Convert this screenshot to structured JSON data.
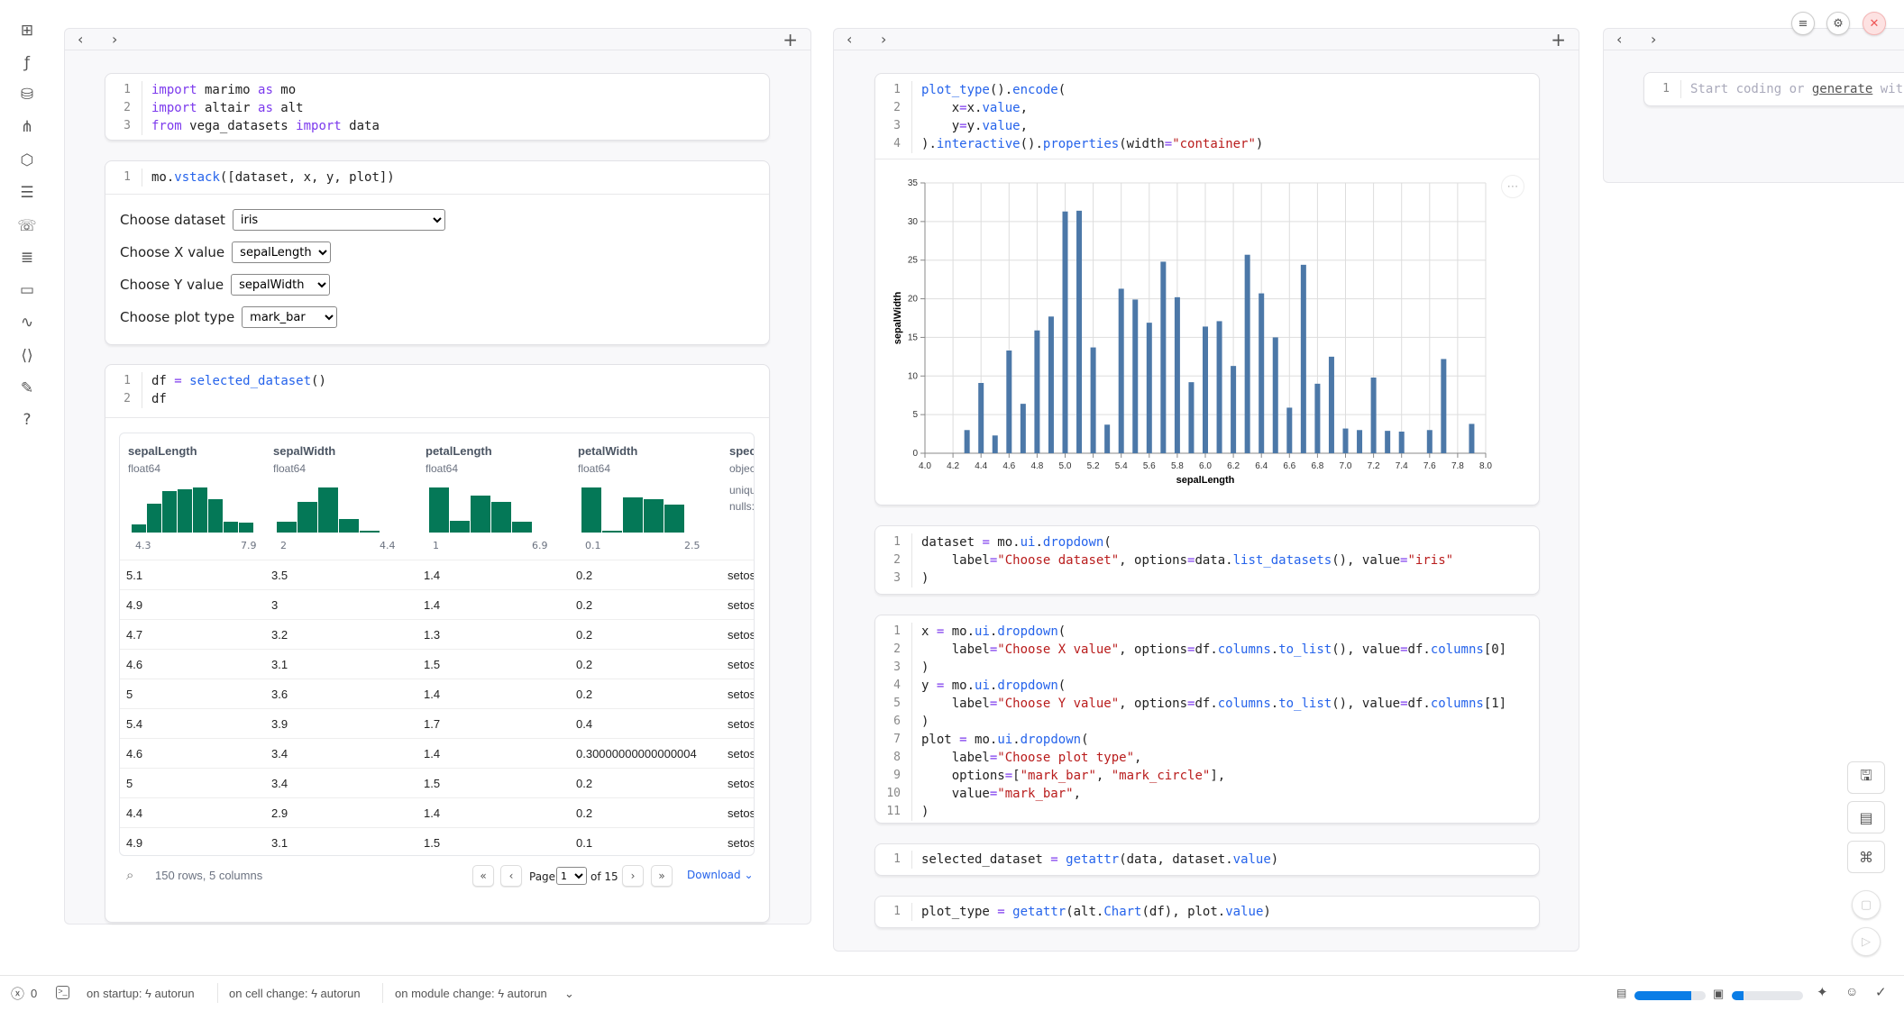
{
  "sidebar": {
    "icons": [
      "file-tree-icon",
      "function-icon",
      "database-icon",
      "dependency-graph-icon",
      "package-icon",
      "outline-icon",
      "chat-icon",
      "search-list-icon",
      "document-icon",
      "activity-icon",
      "snippets-icon",
      "notes-icon",
      "help-icon"
    ]
  },
  "panel1": {
    "cell1": [
      "import marimo as mo",
      "import altair as alt",
      "from vega_datasets import data"
    ],
    "cell2": [
      "mo.vstack([dataset, x, y, plot])"
    ],
    "form": [
      {
        "label": "Choose dataset",
        "value": "iris"
      },
      {
        "label": "Choose X value",
        "value": "sepalLength"
      },
      {
        "label": "Choose Y value",
        "value": "sepalWidth"
      },
      {
        "label": "Choose plot type",
        "value": "mark_bar"
      }
    ],
    "cell3": [
      "df = selected_dataset()",
      "df"
    ],
    "table": {
      "columns": [
        {
          "name": "sepalLength",
          "type": "float64",
          "min": "4.3",
          "max": "7.9",
          "hist": [
            9,
            32,
            46,
            48,
            50,
            37,
            12,
            11
          ]
        },
        {
          "name": "sepalWidth",
          "type": "float64",
          "min": "2",
          "max": "4.4",
          "hist": [
            15,
            44,
            64,
            19,
            3
          ]
        },
        {
          "name": "petalLength",
          "type": "float64",
          "min": "1",
          "max": "6.9",
          "hist": [
            50,
            13,
            41,
            34,
            12
          ]
        },
        {
          "name": "petalWidth",
          "type": "float64",
          "min": "0.1",
          "max": "2.5",
          "hist": [
            49,
            2,
            38,
            36,
            30
          ]
        },
        {
          "name": "species",
          "type": "object",
          "unique": "uniqu",
          "nulls": "nulls:"
        }
      ],
      "rows": [
        [
          "5.1",
          "3.5",
          "1.4",
          "0.2",
          "setosa"
        ],
        [
          "4.9",
          "3",
          "1.4",
          "0.2",
          "setosa"
        ],
        [
          "4.7",
          "3.2",
          "1.3",
          "0.2",
          "setosa"
        ],
        [
          "4.6",
          "3.1",
          "1.5",
          "0.2",
          "setosa"
        ],
        [
          "5",
          "3.6",
          "1.4",
          "0.2",
          "setosa"
        ],
        [
          "5.4",
          "3.9",
          "1.7",
          "0.4",
          "setosa"
        ],
        [
          "4.6",
          "3.4",
          "1.4",
          "0.30000000000000004",
          "setosa"
        ],
        [
          "5",
          "3.4",
          "1.5",
          "0.2",
          "setosa"
        ],
        [
          "4.4",
          "2.9",
          "1.4",
          "0.2",
          "setosa"
        ],
        [
          "4.9",
          "3.1",
          "1.5",
          "0.1",
          "setosa"
        ]
      ],
      "summary": "150 rows, 5 columns",
      "page_label": "Page",
      "page": "1",
      "of_label": "of 15",
      "download": "Download"
    }
  },
  "panel2": {
    "cellA": [
      "plot_type().encode(",
      "    x=x.value,",
      "    y=y.value,",
      ").interactive().properties(width=\"container\")"
    ],
    "cellB": [
      "dataset = mo.ui.dropdown(",
      "    label=\"Choose dataset\", options=data.list_datasets(), value=\"iris\"",
      ")"
    ],
    "cellC": [
      "x = mo.ui.dropdown(",
      "    label=\"Choose X value\", options=df.columns.to_list(), value=df.columns[0]",
      ")",
      "y = mo.ui.dropdown(",
      "    label=\"Choose Y value\", options=df.columns.to_list(), value=df.columns[1]",
      ")",
      "plot = mo.ui.dropdown(",
      "    label=\"Choose plot type\",",
      "    options=[\"mark_bar\", \"mark_circle\"],",
      "    value=\"mark_bar\",",
      ")"
    ],
    "cellD": [
      "selected_dataset = getattr(data, dataset.value)"
    ],
    "cellE": [
      "plot_type = getattr(alt.Chart(df), plot.value)"
    ]
  },
  "panel3": {
    "placeholder_pre": "Start coding or ",
    "placeholder_link": "generate",
    "placeholder_post": " with"
  },
  "chart_data": {
    "type": "bar",
    "xlabel": "sepalLength",
    "ylabel": "sepalWidth",
    "xlim": [
      4.0,
      8.0
    ],
    "ylim": [
      0,
      35
    ],
    "xticks": [
      "4.0",
      "4.2",
      "4.4",
      "4.6",
      "4.8",
      "5.0",
      "5.2",
      "5.4",
      "5.6",
      "5.8",
      "6.0",
      "6.2",
      "6.4",
      "6.6",
      "6.8",
      "7.0",
      "7.2",
      "7.4",
      "7.6",
      "7.8",
      "8.0"
    ],
    "yticks": [
      "0",
      "5",
      "10",
      "15",
      "20",
      "25",
      "30",
      "35"
    ],
    "grid": true,
    "color": "#4c78a8",
    "x": [
      4.3,
      4.4,
      4.5,
      4.6,
      4.7,
      4.8,
      4.9,
      5.0,
      5.1,
      5.2,
      5.3,
      5.4,
      5.5,
      5.6,
      5.7,
      5.8,
      5.9,
      6.0,
      6.1,
      6.2,
      6.3,
      6.4,
      6.5,
      6.6,
      6.7,
      6.8,
      6.9,
      7.0,
      7.1,
      7.2,
      7.3,
      7.4,
      7.6,
      7.7,
      7.9
    ],
    "values": [
      3.0,
      9.1,
      2.3,
      13.3,
      6.4,
      15.9,
      17.7,
      31.3,
      31.4,
      13.7,
      3.7,
      21.3,
      19.9,
      16.9,
      24.8,
      20.2,
      9.2,
      16.4,
      17.1,
      11.3,
      25.7,
      20.7,
      15.0,
      5.9,
      24.4,
      9.0,
      12.5,
      3.2,
      3.0,
      9.8,
      2.9,
      2.8,
      3.0,
      12.2,
      3.8
    ]
  },
  "status": {
    "errors": "0",
    "startup": "on startup: ϟ autorun",
    "cell_change": "on cell change: ϟ autorun",
    "module_change": "on module change: ϟ autorun",
    "memory_pct": 80,
    "cpu_pct": 17
  },
  "colors": {
    "accent": "#0a7de6",
    "hist": "#047857",
    "bar": "#4c78a8"
  }
}
